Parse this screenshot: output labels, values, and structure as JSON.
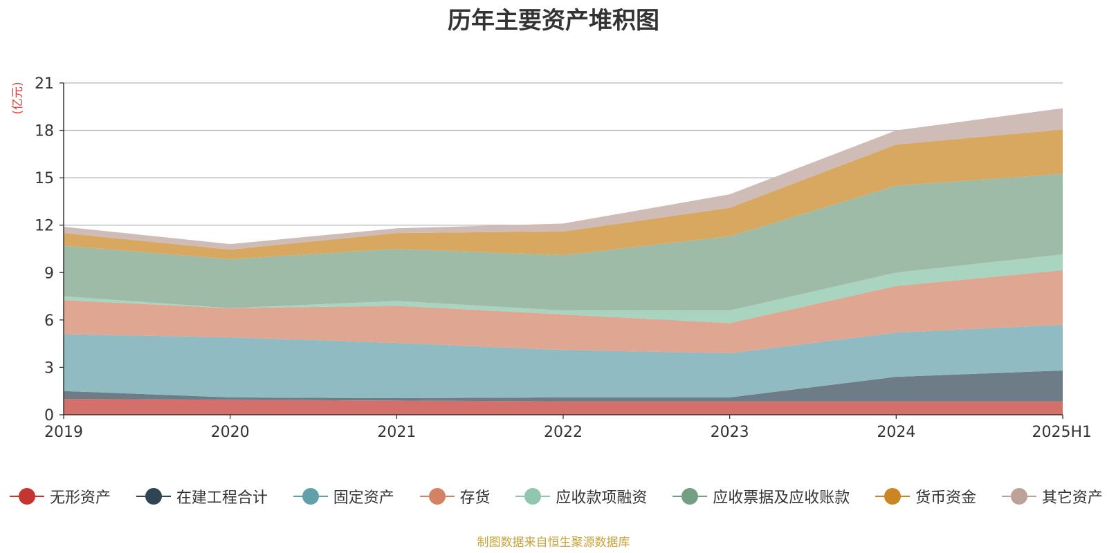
{
  "chart_data": {
    "type": "area",
    "title": "历年主要资产堆积图",
    "ylabel": "(亿元)",
    "xlabel": "",
    "ylim": [
      0,
      21
    ],
    "yticks": [
      0,
      3,
      6,
      9,
      12,
      15,
      18,
      21
    ],
    "grid": true,
    "legend_position": "bottom",
    "stacked": true,
    "categories": [
      "2019",
      "2020",
      "2021",
      "2022",
      "2023",
      "2024",
      "2025H1"
    ],
    "series": [
      {
        "name": "无形资产",
        "color": "#c23531",
        "fill": "#d4706c",
        "values": [
          1.0,
          0.95,
          0.9,
          0.85,
          0.85,
          0.85,
          0.85
        ]
      },
      {
        "name": "在建工程合计",
        "color": "#2f4554",
        "fill": "#6d7c86",
        "values": [
          0.5,
          0.15,
          0.15,
          0.25,
          0.25,
          1.55,
          1.95
        ]
      },
      {
        "name": "固定资产",
        "color": "#61a0a8",
        "fill": "#90bbc2",
        "values": [
          3.6,
          3.8,
          3.5,
          3.0,
          2.8,
          2.8,
          2.9
        ]
      },
      {
        "name": "存货",
        "color": "#d48265",
        "fill": "#dfa691",
        "values": [
          2.15,
          1.85,
          2.35,
          2.25,
          1.9,
          2.95,
          3.45
        ]
      },
      {
        "name": "应收款项融资",
        "color": "#91c7ae",
        "fill": "#a8d4c0",
        "values": [
          0.25,
          0.0,
          0.3,
          0.25,
          0.8,
          0.85,
          1.0
        ]
      },
      {
        "name": "应收票据及应收账款",
        "color": "#749f83",
        "fill": "#9dbba7",
        "values": [
          3.2,
          3.1,
          3.3,
          3.5,
          4.7,
          5.5,
          5.1
        ]
      },
      {
        "name": "货币资金",
        "color": "#ca8622",
        "fill": "#d8a860",
        "values": [
          0.8,
          0.6,
          1.0,
          1.5,
          1.8,
          2.6,
          2.8
        ]
      },
      {
        "name": "其它资产",
        "color": "#bda29a",
        "fill": "#d0bcb6",
        "values": [
          0.4,
          0.35,
          0.3,
          0.5,
          0.85,
          0.9,
          1.35
        ]
      }
    ]
  },
  "footer": {
    "source": "制图数据来自恒生聚源数据库"
  }
}
